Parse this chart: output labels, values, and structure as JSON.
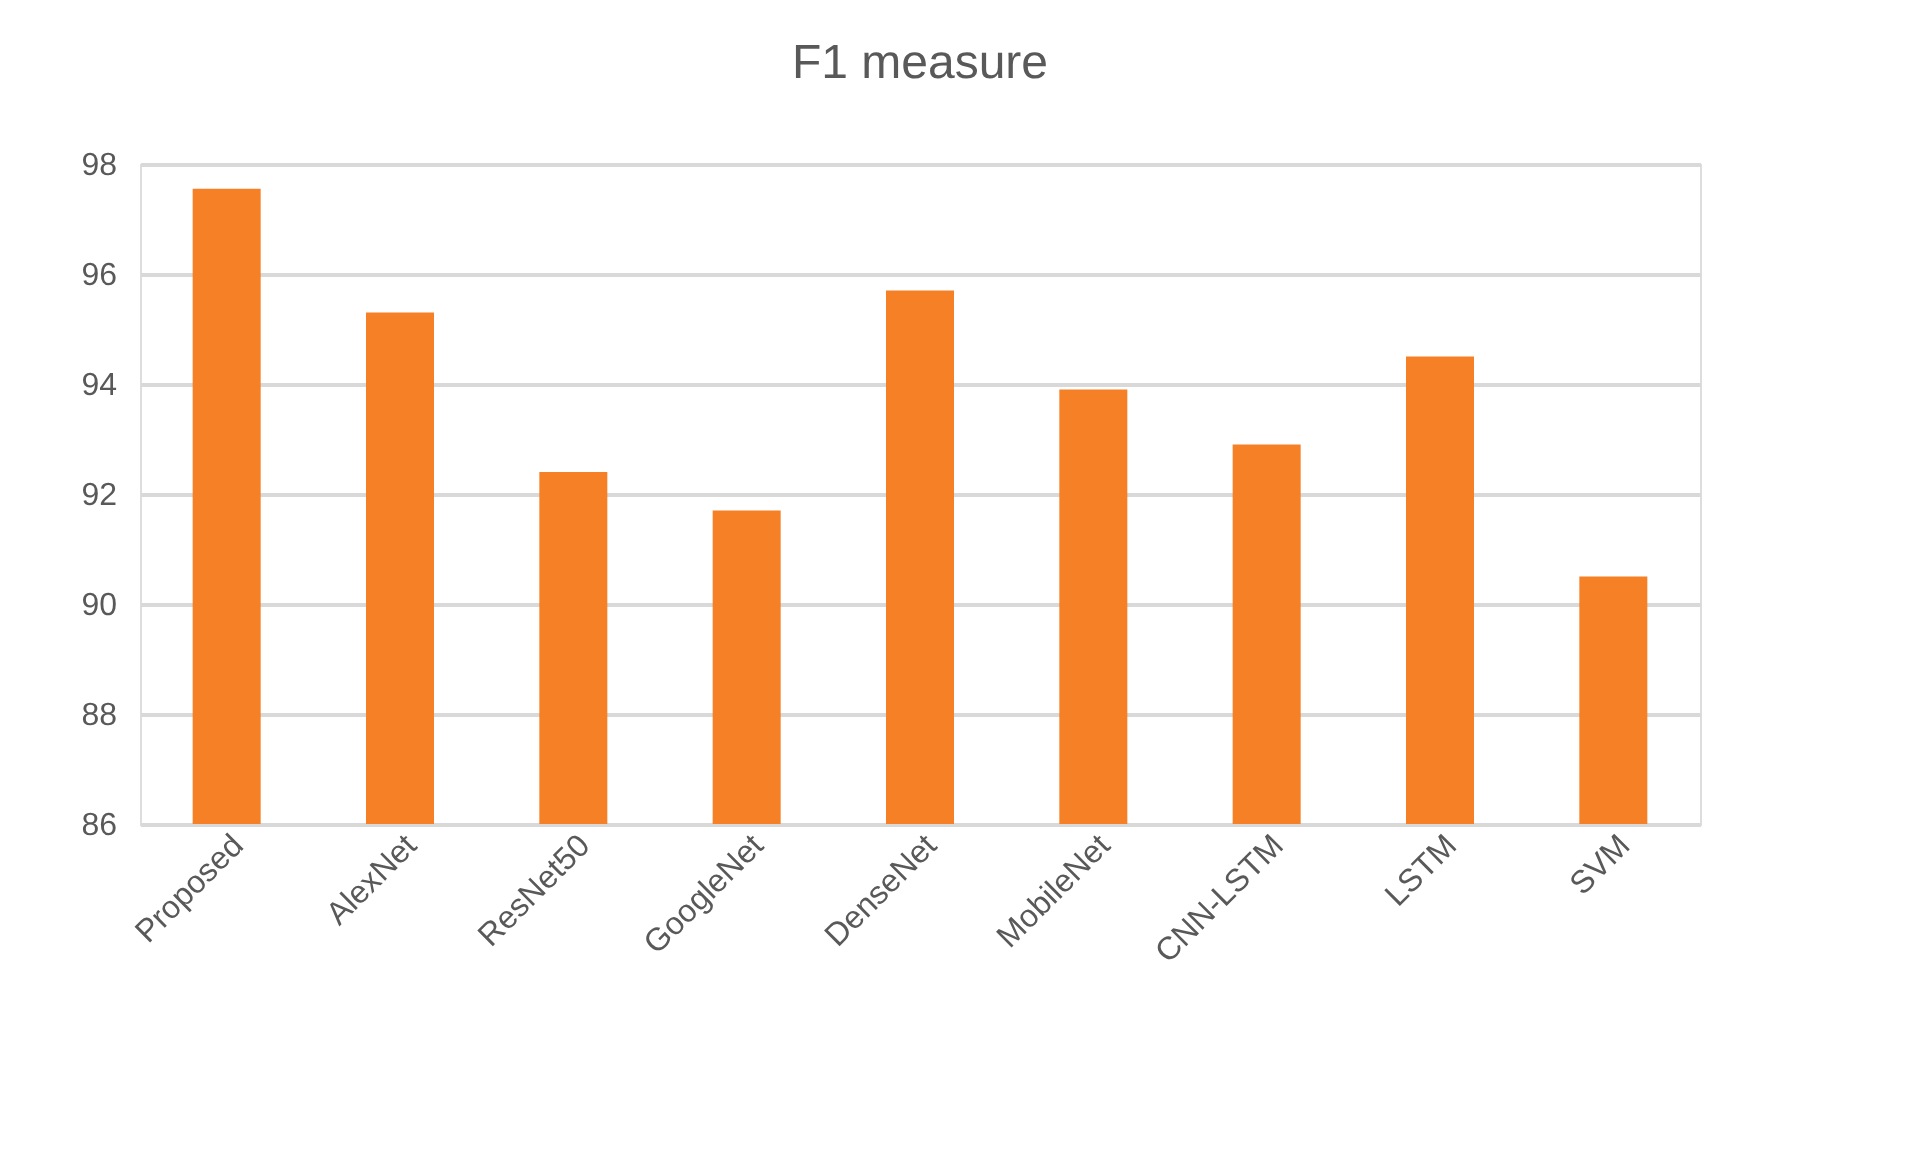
{
  "chart_data": {
    "type": "bar",
    "title": "F1 measure",
    "categories": [
      "Proposed",
      "AlexNet",
      "ResNet50",
      "GoogleNet",
      "DenseNet",
      "MobileNet",
      "CNN-LSTM",
      "LSTM",
      "SVM"
    ],
    "values": [
      97.55,
      95.3,
      92.4,
      91.7,
      95.7,
      93.9,
      92.9,
      94.5,
      90.5
    ],
    "color": "#f58025",
    "ylim": [
      86,
      98
    ],
    "yticks": [
      86,
      88,
      90,
      92,
      94,
      96,
      98
    ],
    "grid": "y"
  }
}
